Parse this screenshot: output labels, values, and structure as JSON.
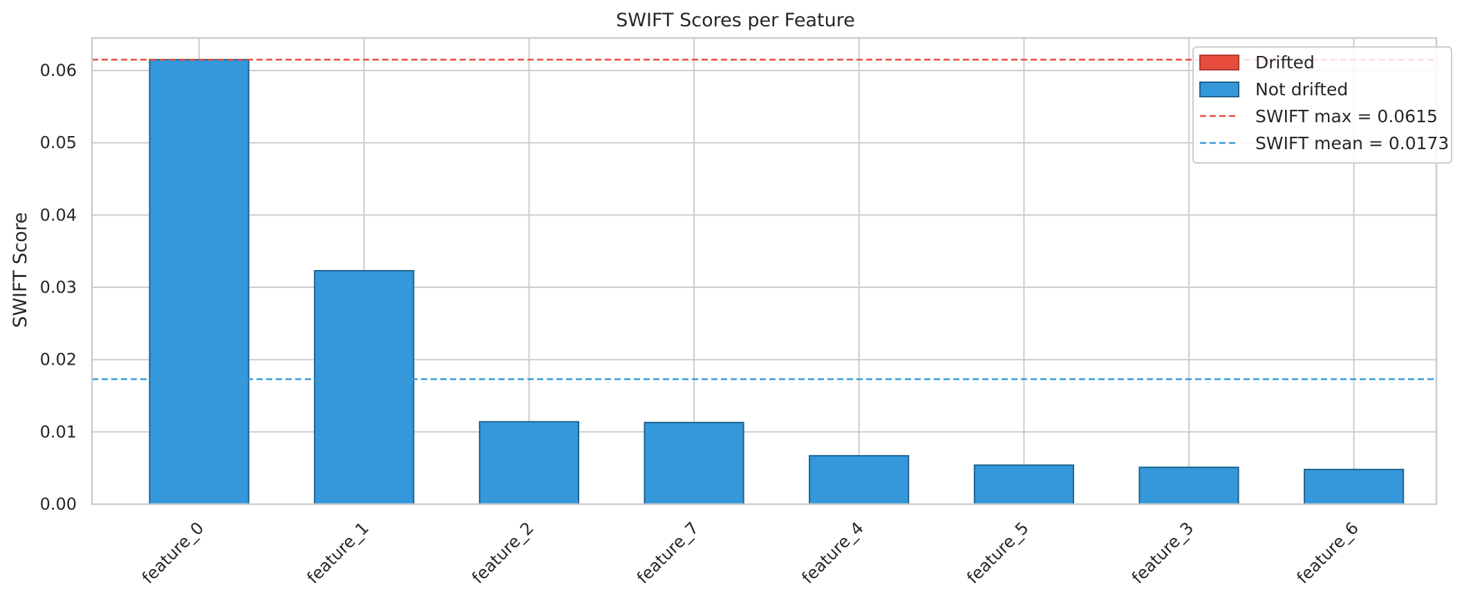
{
  "chart_data": {
    "type": "bar",
    "title": "SWIFT Scores per Feature",
    "xlabel": "",
    "ylabel": "SWIFT Score",
    "ylim": [
      0,
      0.0645
    ],
    "yticks": [
      "0.00",
      "0.01",
      "0.02",
      "0.03",
      "0.04",
      "0.05",
      "0.06"
    ],
    "categories": [
      "feature_0",
      "feature_1",
      "feature_2",
      "feature_7",
      "feature_4",
      "feature_5",
      "feature_3",
      "feature_6"
    ],
    "values": [
      0.0615,
      0.0323,
      0.0114,
      0.0113,
      0.0067,
      0.0054,
      0.0051,
      0.0048
    ],
    "drifted": [
      false,
      false,
      false,
      false,
      false,
      false,
      false,
      false
    ],
    "grid": true,
    "legend_position": "top-right",
    "reference_lines": [
      {
        "label": "SWIFT max = 0.0615",
        "value": 0.0615,
        "color": "#e74c3c"
      },
      {
        "label": "SWIFT mean = 0.0173",
        "value": 0.0173,
        "color": "#3498db"
      }
    ],
    "legend": [
      {
        "label": "Drifted",
        "kind": "patch",
        "color": "#e74c3c",
        "edge": "#b03a2e"
      },
      {
        "label": "Not drifted",
        "kind": "patch",
        "color": "#3498db",
        "edge": "#1f618d"
      },
      {
        "label": "SWIFT max = 0.0615",
        "kind": "line",
        "color": "#e74c3c"
      },
      {
        "label": "SWIFT mean = 0.0173",
        "kind": "line",
        "color": "#3498db"
      }
    ],
    "colors": {
      "drifted": "#e74c3c",
      "not_drifted": "#3498db",
      "bar_edge": "#1f618d",
      "grid": "#cccccc",
      "spine": "#cccccc"
    }
  }
}
